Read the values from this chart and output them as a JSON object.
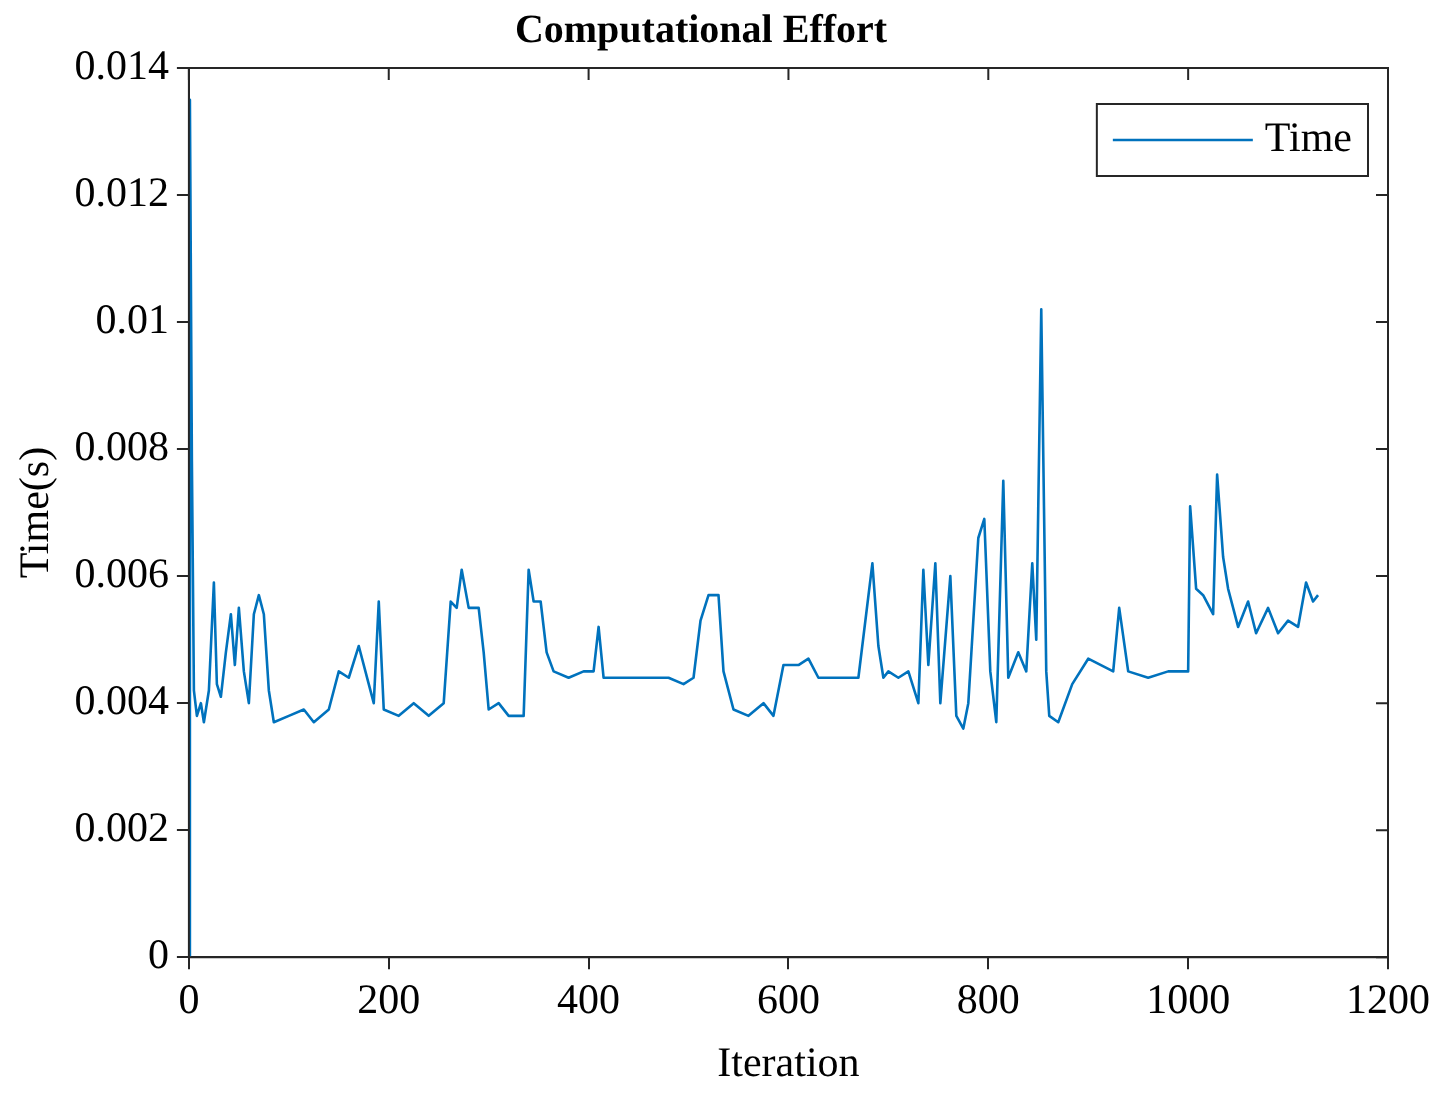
{
  "chart_data": {
    "type": "line",
    "title": "Computational Effort",
    "xlabel": "Iteration",
    "ylabel": "Time(s)",
    "xlim": [
      0,
      1200
    ],
    "xticks": [
      0,
      200,
      400,
      600,
      800,
      1000,
      1200
    ],
    "ylim": [
      0,
      0.014
    ],
    "yticks": [
      0,
      0.002,
      0.004,
      0.006,
      0.008,
      0.01,
      0.012,
      0.014
    ],
    "grid": false,
    "legend": "top right",
    "marker": "none",
    "line_style": "solid",
    "series": [
      {
        "name": "Time",
        "color": "#0072bd",
        "x": [
          0,
          1,
          3,
          5,
          8,
          12,
          15,
          20,
          25,
          28,
          32,
          37,
          42,
          46,
          50,
          55,
          60,
          65,
          70,
          75,
          80,
          85,
          100,
          115,
          125,
          140,
          150,
          160,
          170,
          180,
          185,
          190,
          195,
          210,
          225,
          240,
          255,
          262,
          268,
          273,
          280,
          290,
          295,
          300,
          310,
          320,
          335,
          340,
          345,
          352,
          358,
          365,
          380,
          395,
          405,
          410,
          415,
          440,
          460,
          480,
          495,
          505,
          512,
          520,
          530,
          535,
          545,
          560,
          575,
          585,
          595,
          610,
          620,
          630,
          650,
          670,
          684,
          690,
          695,
          700,
          710,
          720,
          730,
          735,
          740,
          747,
          752,
          762,
          768,
          775,
          780,
          790,
          796,
          802,
          808,
          815,
          820,
          830,
          838,
          844,
          848,
          853,
          858,
          861,
          870,
          884,
          900,
          925,
          931,
          940,
          960,
          980,
          1000,
          1002,
          1008,
          1015,
          1025,
          1029,
          1035,
          1040,
          1050,
          1060,
          1068,
          1080,
          1090,
          1100,
          1110,
          1118,
          1125,
          1130
        ],
        "values": [
          0,
          0.0135,
          0.0078,
          0.0042,
          0.0038,
          0.004,
          0.0037,
          0.0042,
          0.0059,
          0.0043,
          0.0041,
          0.0048,
          0.0054,
          0.0046,
          0.0055,
          0.0045,
          0.004,
          0.0054,
          0.0057,
          0.0054,
          0.0042,
          0.0037,
          0.0038,
          0.0039,
          0.0037,
          0.0039,
          0.0045,
          0.0044,
          0.0049,
          0.0043,
          0.004,
          0.0056,
          0.0039,
          0.0038,
          0.004,
          0.0038,
          0.004,
          0.0056,
          0.0055,
          0.0061,
          0.0055,
          0.0055,
          0.0048,
          0.0039,
          0.004,
          0.0038,
          0.0038,
          0.0061,
          0.0056,
          0.0056,
          0.0048,
          0.0045,
          0.0044,
          0.0045,
          0.0045,
          0.0052,
          0.0044,
          0.0044,
          0.0044,
          0.0044,
          0.0043,
          0.0044,
          0.0053,
          0.0057,
          0.0057,
          0.0045,
          0.0039,
          0.0038,
          0.004,
          0.0038,
          0.0046,
          0.0046,
          0.0047,
          0.0044,
          0.0044,
          0.0044,
          0.0062,
          0.0049,
          0.0044,
          0.0045,
          0.0044,
          0.0045,
          0.004,
          0.0061,
          0.0046,
          0.0062,
          0.004,
          0.006,
          0.0038,
          0.0036,
          0.004,
          0.0066,
          0.0069,
          0.0045,
          0.0037,
          0.0075,
          0.0044,
          0.0048,
          0.0045,
          0.0062,
          0.005,
          0.0102,
          0.0045,
          0.0038,
          0.0037,
          0.0043,
          0.0047,
          0.0045,
          0.0055,
          0.0045,
          0.0044,
          0.0045,
          0.0045,
          0.0071,
          0.0058,
          0.0057,
          0.0054,
          0.0076,
          0.0063,
          0.0058,
          0.0052,
          0.0056,
          0.0051,
          0.0055,
          0.0051,
          0.0053,
          0.0052,
          0.0059,
          0.0056,
          0.0057
        ]
      }
    ]
  }
}
